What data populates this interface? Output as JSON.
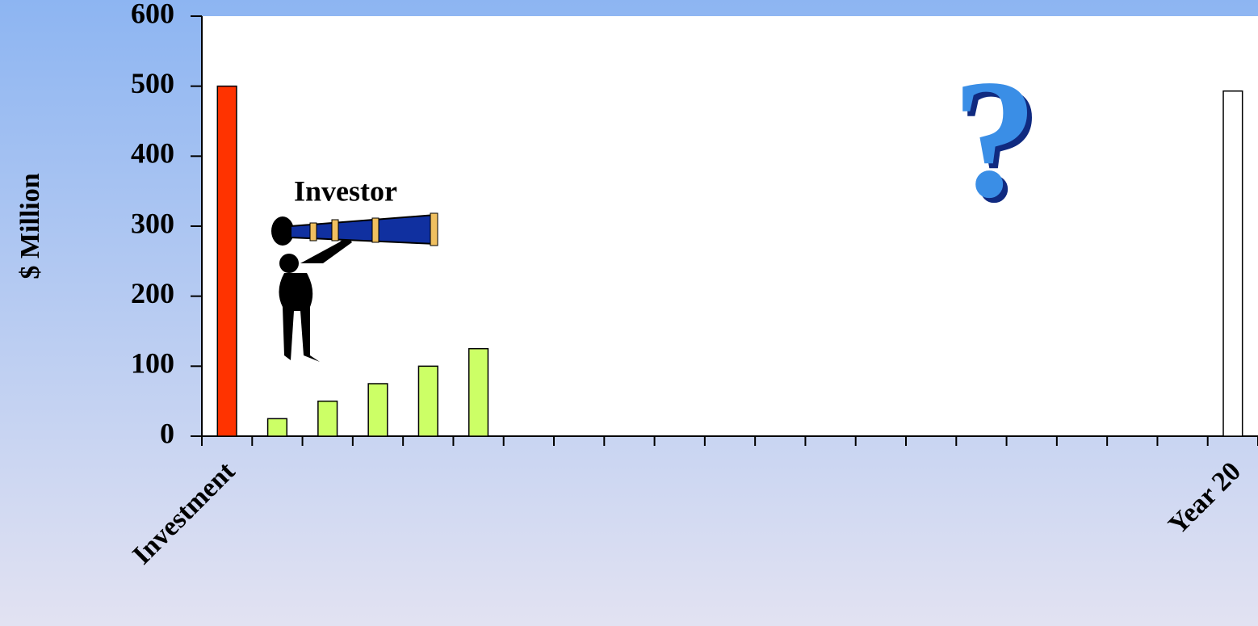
{
  "chart_data": {
    "type": "bar",
    "y_label": "$ Million",
    "categories": [
      "Investment",
      null,
      null,
      null,
      null,
      null,
      null,
      null,
      null,
      null,
      null,
      null,
      null,
      null,
      null,
      null,
      null,
      null,
      null,
      null,
      "Year 20"
    ],
    "values": [
      500,
      25,
      50,
      75,
      100,
      125,
      null,
      null,
      null,
      null,
      null,
      null,
      null,
      null,
      null,
      null,
      null,
      null,
      null,
      null,
      493
    ],
    "colors": [
      "#ff3300",
      "#ccff66",
      "#ccff66",
      "#ccff66",
      "#ccff66",
      "#ccff66",
      null,
      null,
      null,
      null,
      null,
      null,
      null,
      null,
      null,
      null,
      null,
      null,
      null,
      null,
      "#ffffff"
    ],
    "ylim": [
      0,
      600
    ],
    "yticks": [
      0,
      100,
      200,
      300,
      400,
      500,
      600
    ],
    "annotations": [
      "Investor",
      "?"
    ]
  }
}
